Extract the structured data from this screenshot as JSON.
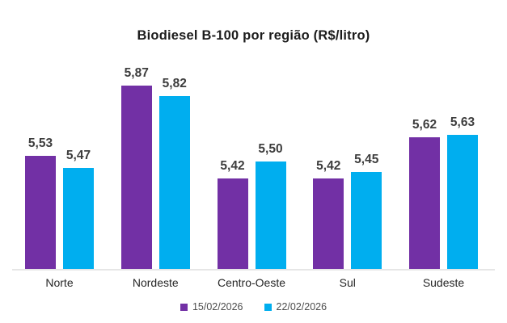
{
  "chart_data": {
    "type": "bar",
    "title": "Biodiesel B-100 por região (R$/litro)",
    "categories": [
      "Norte",
      "Nordeste",
      "Centro-Oeste",
      "Sul",
      "Sudeste"
    ],
    "series": [
      {
        "name": "15/02/2026",
        "color": "#7230A5",
        "values": [
          5.53,
          5.87,
          5.42,
          5.42,
          5.62
        ]
      },
      {
        "name": "22/02/2026",
        "color": "#00AEEF",
        "values": [
          5.47,
          5.82,
          5.5,
          5.45,
          5.63
        ]
      }
    ],
    "value_label_format": "comma_decimal_2dp",
    "decimal_separator": ",",
    "ylim": [
      4.98,
      6.01
    ],
    "grid": false,
    "y_axis_visible": false,
    "legend_position": "bottom",
    "colors": {
      "background": "#ffffff",
      "title_text": "#1c1c1c",
      "value_label_text": "#3d3d3d",
      "x_label_text": "#262626",
      "legend_text": "#4d4d4d",
      "baseline": "#e6e6e6"
    }
  }
}
